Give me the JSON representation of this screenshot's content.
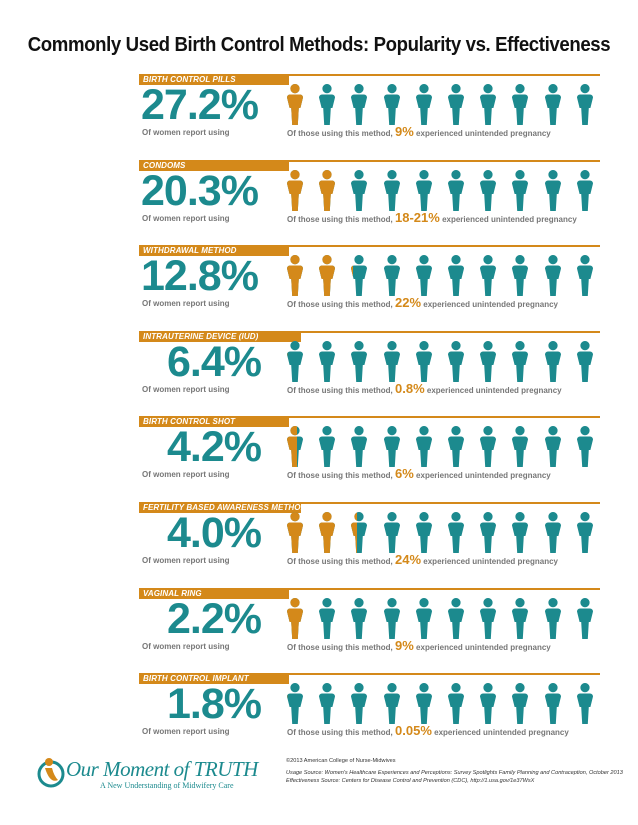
{
  "title": "Commonly Used Birth Control Methods: Popularity vs. Effectiveness",
  "colors": {
    "teal": "#1c8a8e",
    "orange": "#d4891a"
  },
  "figure_icon": "woman-figure-icon",
  "methods": [
    {
      "label": "BIRTH CONTROL PILLS",
      "percent": "27.2%",
      "report_text": "Of women report using",
      "caption_prefix": "Of those using this method,",
      "highlight": "9%",
      "caption_suffix": "experienced unintended pregnancy",
      "pregnancy_rate": 0.09
    },
    {
      "label": "CONDOMS",
      "percent": "20.3%",
      "report_text": "Of women report using",
      "caption_prefix": "Of those using this method,",
      "highlight": "18-21%",
      "caption_suffix": "experienced unintended pregnancy",
      "pregnancy_rate": 0.205
    },
    {
      "label": "WITHDRAWAL METHOD",
      "percent": "12.8%",
      "report_text": "Of women report using",
      "caption_prefix": "Of those using this method,",
      "highlight": "22%",
      "caption_suffix": "experienced unintended pregnancy",
      "pregnancy_rate": 0.22
    },
    {
      "label": "INTRAUTERINE DEVICE (IUD)",
      "percent": "6.4%",
      "report_text": "Of women report using",
      "caption_prefix": "Of those using this method,",
      "highlight": "0.8%",
      "caption_suffix": "experienced unintended pregnancy",
      "pregnancy_rate": 0.008
    },
    {
      "label": "BIRTH CONTROL SHOT",
      "percent": "4.2%",
      "report_text": "Of women report using",
      "caption_prefix": "Of those using this method,",
      "highlight": "6%",
      "caption_suffix": "experienced unintended pregnancy",
      "pregnancy_rate": 0.06
    },
    {
      "label": "FERTILITY BASED AWARENESS METHOD",
      "percent": "4.0%",
      "report_text": "Of women report using",
      "caption_prefix": "Of those using this method,",
      "highlight": "24%",
      "caption_suffix": "experienced unintended pregnancy",
      "pregnancy_rate": 0.24
    },
    {
      "label": "VAGINAL RING",
      "percent": "2.2%",
      "report_text": "Of women report using",
      "caption_prefix": "Of those using this method,",
      "highlight": "9%",
      "caption_suffix": "experienced unintended pregnancy",
      "pregnancy_rate": 0.09
    },
    {
      "label": "BIRTH CONTROL IMPLANT",
      "percent": "1.8%",
      "report_text": "Of women report using",
      "caption_prefix": "Of those using this method,",
      "highlight": "0.05%",
      "caption_suffix": "experienced unintended pregnancy",
      "pregnancy_rate": 0.0005
    }
  ],
  "logo": {
    "name": "Our Moment of TRUTH",
    "tagline": "A New Understanding of Midwifery Care"
  },
  "footer": {
    "copyright": "©2013 American College of Nurse-Midwives",
    "usage_source": "Usage Source: Women's Healthcare Experiences and Perceptions: Survey Spotlights Family Planning and Contraception, October 2013",
    "effectiveness_source": "Effectiveness Source: Centers for Disease Control and Prevention (CDC), http://1.usa.gov/1e37WsX"
  }
}
